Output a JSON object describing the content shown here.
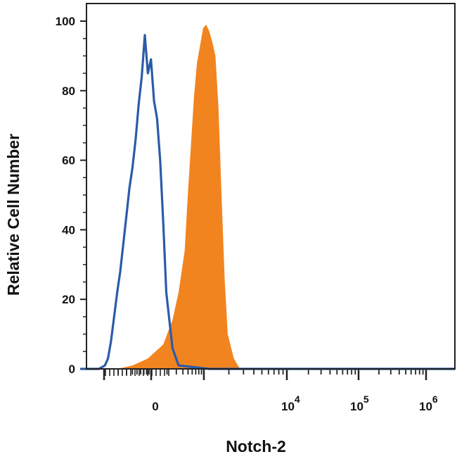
{
  "chart_data": {
    "type": "area",
    "title": "",
    "xlabel": "Notch-2",
    "ylabel": "Relative Cell Number",
    "ylim": [
      0,
      100
    ],
    "x_ticks": [
      {
        "label": "0",
        "exp": ""
      },
      {
        "label": "10",
        "exp": "4"
      },
      {
        "label": "10",
        "exp": "5"
      },
      {
        "label": "10",
        "exp": "6"
      }
    ],
    "x_scale": "biexponential",
    "x_range": [
      -20,
      100
    ],
    "y_ticks": [
      0,
      20,
      40,
      60,
      80,
      100
    ],
    "grid": false,
    "legend": "none",
    "series": [
      {
        "style": "filled",
        "color": "#f2841f",
        "x": [
          -22,
          -10,
          -5,
          0,
          5,
          8,
          10,
          12,
          13,
          14,
          15,
          16,
          17,
          18,
          19,
          20,
          21,
          22,
          23,
          24,
          25,
          26,
          28,
          30,
          40,
          60,
          100
        ],
        "y": [
          0,
          0,
          1,
          3,
          7,
          14,
          22,
          34,
          50,
          64,
          78,
          88,
          93,
          98,
          99,
          97,
          94,
          90,
          75,
          50,
          26,
          10,
          3,
          0,
          0,
          0,
          0
        ]
      },
      {
        "style": "line",
        "color": "#2b5ba8",
        "x": [
          -22,
          -16,
          -14,
          -13,
          -12,
          -11,
          -10,
          -9,
          -8,
          -7,
          -6,
          -5,
          -4,
          -3,
          -2,
          -1,
          0,
          1,
          2,
          3,
          4,
          5,
          6,
          8,
          10,
          20,
          40,
          60,
          100
        ],
        "y": [
          0,
          0,
          1,
          3,
          8,
          15,
          22,
          28,
          36,
          44,
          52,
          58,
          66,
          76,
          84,
          96,
          85,
          89,
          77,
          72,
          60,
          42,
          22,
          6,
          1,
          0,
          0,
          0,
          0
        ]
      }
    ]
  }
}
